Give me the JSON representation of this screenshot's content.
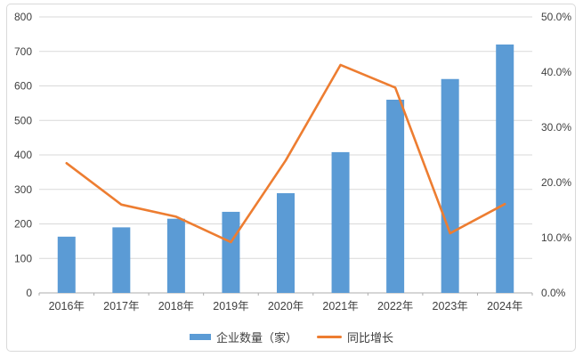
{
  "chart_data": {
    "type": "bar",
    "subtype": "bar+line combo",
    "categories": [
      "2016年",
      "2017年",
      "2018年",
      "2019年",
      "2020年",
      "2021年",
      "2022年",
      "2023年",
      "2024年"
    ],
    "series": [
      {
        "name": "企业数量（家）",
        "type": "bar",
        "axis": "left",
        "values": [
          163,
          190,
          215,
          235,
          289,
          408,
          560,
          620,
          720
        ]
      },
      {
        "name": "同比增长",
        "type": "line",
        "axis": "right",
        "values": [
          23.5,
          16.0,
          13.8,
          9.2,
          24.0,
          41.3,
          37.2,
          10.8,
          16.1
        ]
      }
    ],
    "title": "",
    "xlabel": "",
    "ylabel": "",
    "left_axis": {
      "min": 0,
      "max": 800,
      "step": 100,
      "labels": [
        "0",
        "100",
        "200",
        "300",
        "400",
        "500",
        "600",
        "700",
        "800"
      ]
    },
    "right_axis": {
      "min": 0,
      "max": 50,
      "step": 10,
      "labels": [
        "0.0%",
        "10.0%",
        "20.0%",
        "30.0%",
        "40.0%",
        "50.0%"
      ]
    },
    "grid": true,
    "legend_position": "bottom"
  },
  "legend": {
    "items": [
      {
        "label": "企业数量（家）",
        "marker": "bar-swatch"
      },
      {
        "label": "同比增长",
        "marker": "line-segment"
      }
    ]
  },
  "colors": {
    "bar": "#5B9BD5",
    "line": "#ED7D31",
    "grid": "#D9D9D9",
    "axis": "#ACACAC",
    "text": "#404040",
    "frame": "#D9D9D9",
    "background": "#FFFFFF"
  }
}
